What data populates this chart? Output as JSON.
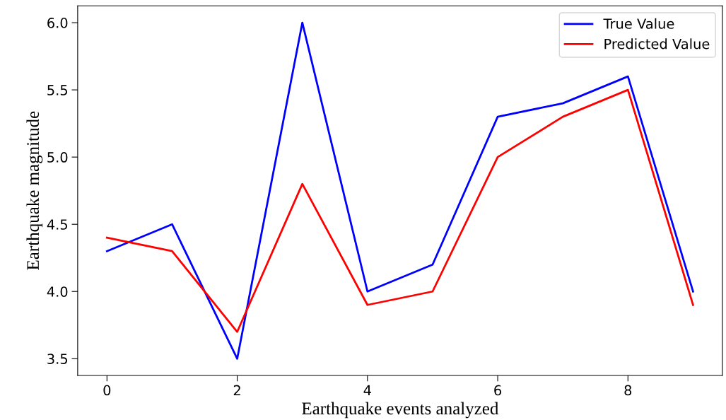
{
  "chart_data": {
    "type": "line",
    "xlabel": "Earthquake events analyzed",
    "ylabel": "Earthquake magnitude",
    "x": [
      0,
      1,
      2,
      3,
      4,
      5,
      6,
      7,
      8,
      9
    ],
    "series": [
      {
        "name": "True Value",
        "color": "#0000ff",
        "values": [
          4.3,
          4.5,
          3.5,
          6.0,
          4.0,
          4.2,
          5.3,
          5.4,
          5.6,
          4.0
        ]
      },
      {
        "name": "Predicted Value",
        "color": "#ff0000",
        "values": [
          4.4,
          4.3,
          3.7,
          4.8,
          3.9,
          4.0,
          5.0,
          5.3,
          5.5,
          3.9
        ]
      }
    ],
    "xlim": [
      -0.45,
      9.45
    ],
    "xticks": [
      0,
      2,
      4,
      6,
      8
    ],
    "ylim": [
      3.375,
      6.125
    ],
    "yticks": [
      {
        "value": 3.5,
        "label": "3.5"
      },
      {
        "value": 4.0,
        "label": "4.0"
      },
      {
        "value": 4.5,
        "label": "4.5"
      },
      {
        "value": 5.0,
        "label": "5.0"
      },
      {
        "value": 5.5,
        "label": "5.5"
      },
      {
        "value": 6.0,
        "label": "6.0"
      }
    ],
    "grid": false,
    "legend": "top right"
  }
}
